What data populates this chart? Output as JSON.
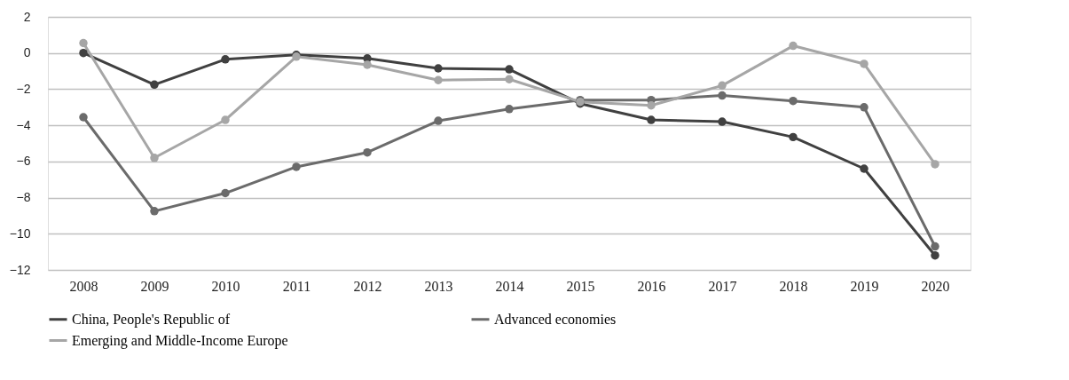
{
  "chart_data": {
    "type": "line",
    "categories": [
      "2008",
      "2009",
      "2010",
      "2011",
      "2012",
      "2013",
      "2014",
      "2015",
      "2016",
      "2017",
      "2018",
      "2019",
      "2020"
    ],
    "series": [
      {
        "name": "China, People's Republic of",
        "color": "#404040",
        "values": [
          0,
          -1.75,
          -0.35,
          -0.1,
          -0.3,
          -0.85,
          -0.9,
          -2.8,
          -3.7,
          -3.8,
          -4.65,
          -6.4,
          -11.2
        ]
      },
      {
        "name": "Advanced economies",
        "color": "#6b6b6b",
        "values": [
          -3.55,
          -8.75,
          -7.75,
          -6.3,
          -5.5,
          -3.75,
          -3.1,
          -2.6,
          -2.6,
          -2.35,
          -2.65,
          -3.0,
          -10.7
        ]
      },
      {
        "name": "Emerging and Middle-Income Europe",
        "color": "#a6a6a6",
        "values": [
          0.55,
          -5.8,
          -3.7,
          -0.2,
          -0.65,
          -1.5,
          -1.45,
          -2.7,
          -2.9,
          -1.8,
          0.4,
          -0.6,
          -6.15
        ]
      }
    ],
    "ylim": [
      -12,
      2
    ],
    "yticks": [
      -12,
      -10,
      -8,
      -6,
      -4,
      -2,
      0,
      2
    ],
    "grid": "y",
    "legend": "bottom",
    "marker": "circle",
    "line_style": "solid"
  }
}
